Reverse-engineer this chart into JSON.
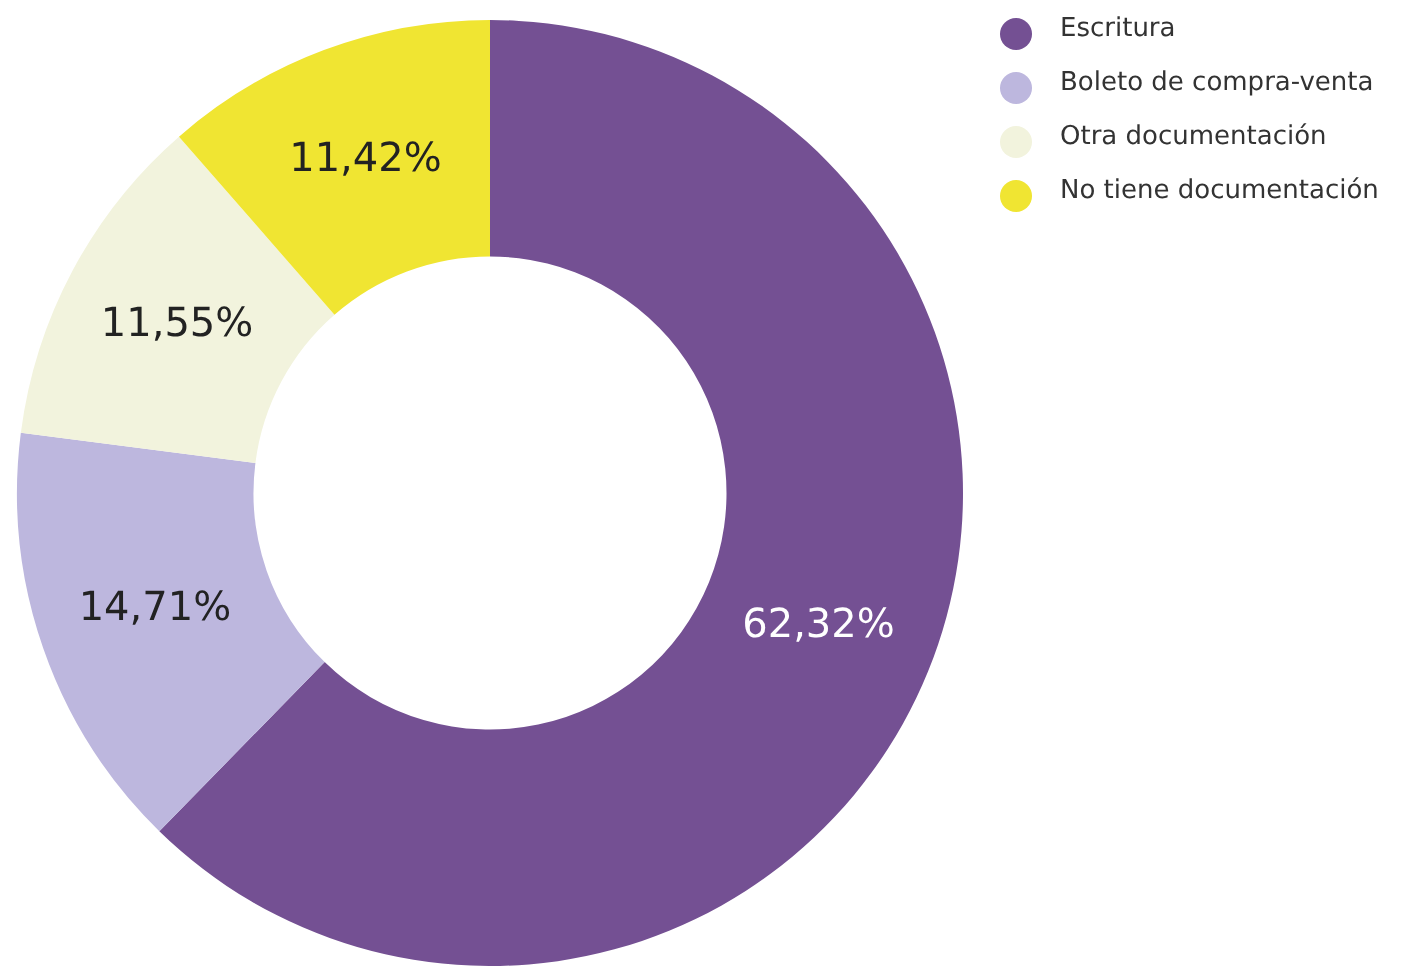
{
  "chart_data": {
    "type": "donut",
    "categories": [
      "Escritura",
      "Boleto de compra-venta",
      "Otra documentación",
      "No tiene documentación"
    ],
    "values": [
      62.32,
      14.71,
      11.55,
      11.42
    ],
    "colors": [
      "#745093",
      "#bdb7de",
      "#f2f3dd",
      "#f0e532"
    ],
    "value_labels": [
      "62,32%",
      "14,71%",
      "11,55%",
      "11,42%"
    ],
    "legend": "top right"
  }
}
